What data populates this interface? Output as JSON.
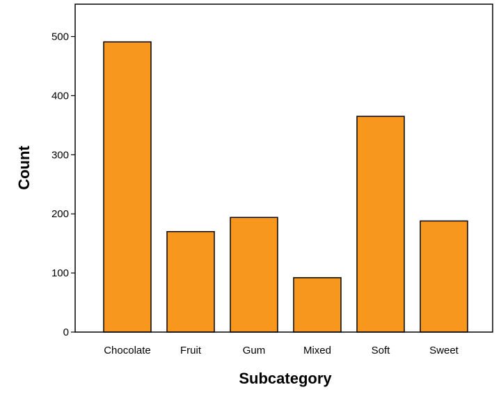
{
  "chart_data": {
    "type": "bar",
    "categories": [
      "Chocolate",
      "Fruit",
      "Gum",
      "Mixed",
      "Soft",
      "Sweet"
    ],
    "values": [
      491,
      170,
      194,
      92,
      365,
      188
    ],
    "xlabel": "Subcategory",
    "ylabel": "Count",
    "ylim": [
      0,
      560
    ],
    "yticks": [
      0,
      100,
      200,
      300,
      400,
      500
    ],
    "bar_color": "#f7971e",
    "bar_stroke": "#000000",
    "grid": false,
    "legend": "none"
  }
}
